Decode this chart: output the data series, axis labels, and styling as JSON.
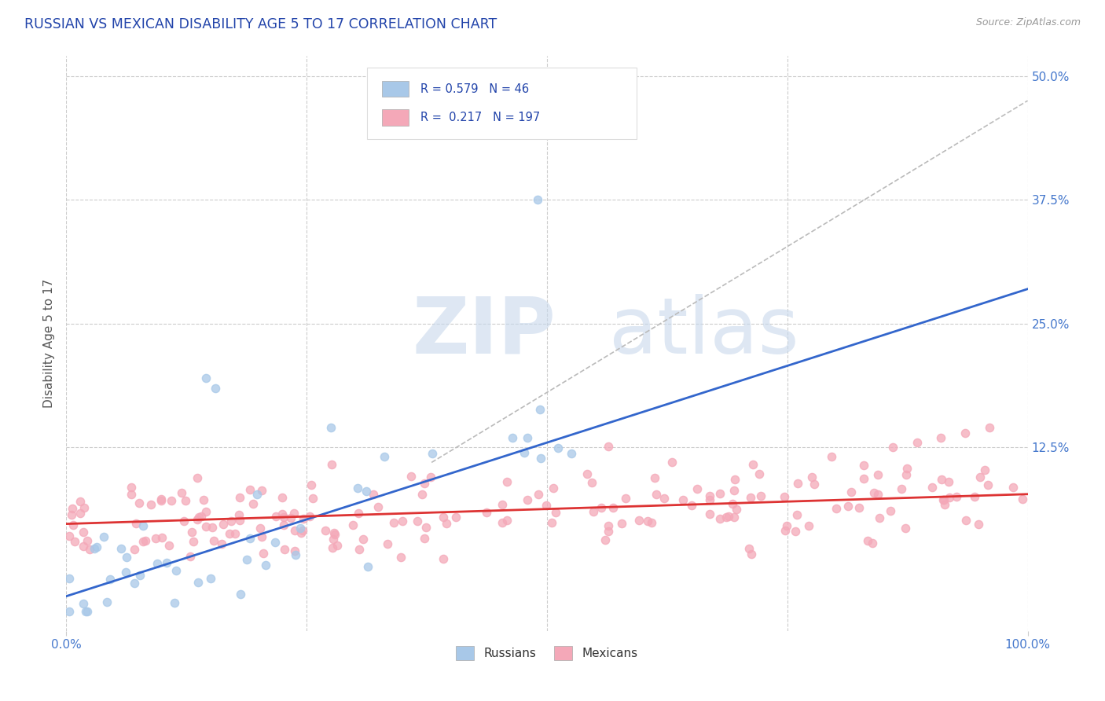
{
  "title": "RUSSIAN VS MEXICAN DISABILITY AGE 5 TO 17 CORRELATION CHART",
  "source": "Source: ZipAtlas.com",
  "ylabel_label": "Disability Age 5 to 17",
  "right_ytick_vals": [
    0.5,
    0.375,
    0.25,
    0.125
  ],
  "right_ytick_labels": [
    "50.0%",
    "37.5%",
    "25.0%",
    "12.5%"
  ],
  "legend_blue_R": "0.579",
  "legend_blue_N": "46",
  "legend_pink_R": "0.217",
  "legend_pink_N": "197",
  "legend_label_blue": "Russians",
  "legend_label_pink": "Mexicans",
  "blue_scatter_color": "#a8c8e8",
  "pink_scatter_color": "#f4a8b8",
  "blue_line_color": "#3366cc",
  "pink_line_color": "#dd3333",
  "dashed_line_color": "#bbbbbb",
  "title_color": "#2244aa",
  "watermark_zip_color": "#c8d8ec",
  "watermark_atlas_color": "#c8d8ec",
  "background_color": "#ffffff",
  "grid_color": "#cccccc",
  "axis_tick_color": "#4477cc",
  "ylabel_color": "#555555",
  "legend_text_color": "#2244aa",
  "source_color": "#999999",
  "xlim": [
    0.0,
    1.0
  ],
  "ylim": [
    -0.06,
    0.52
  ],
  "blue_line_x0": 0.0,
  "blue_line_y0": -0.025,
  "blue_line_x1": 1.0,
  "blue_line_y1": 0.285,
  "pink_line_x0": 0.0,
  "pink_line_y0": 0.048,
  "pink_line_x1": 1.0,
  "pink_line_y1": 0.078,
  "dash_line_x0": 0.38,
  "dash_line_y0": 0.11,
  "dash_line_x1": 1.0,
  "dash_line_y1": 0.475
}
